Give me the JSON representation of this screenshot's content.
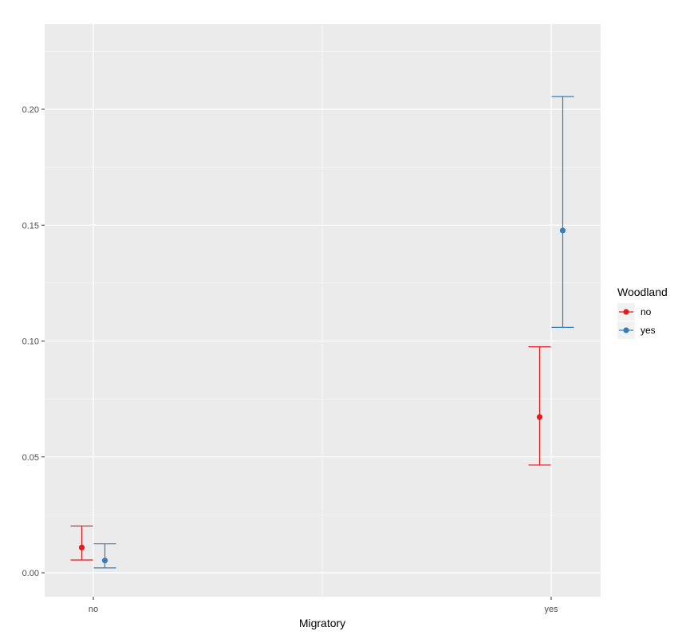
{
  "chart_data": {
    "type": "scatter",
    "subtype": "point-with-errorbars",
    "xlabel": "Migratory",
    "ylabel": "",
    "categories": [
      "no",
      "yes"
    ],
    "ylim": [
      -0.011,
      0.235
    ],
    "yticks": [
      0.0,
      0.05,
      0.1,
      0.15,
      0.2
    ],
    "ytick_labels": [
      "0.00",
      "0.05",
      "0.10",
      "0.15",
      "0.20"
    ],
    "grid": true,
    "background": "#ebebeb",
    "legend": {
      "title": "Woodland",
      "position": "right"
    },
    "series": [
      {
        "name": "no",
        "color": "#e41a1c",
        "points": [
          {
            "category": "no",
            "y": 0.0109,
            "ymin": 0.0055,
            "ymax": 0.0202
          },
          {
            "category": "yes",
            "y": 0.0672,
            "ymin": 0.0465,
            "ymax": 0.0975
          }
        ]
      },
      {
        "name": "yes",
        "color": "#377eb8",
        "points": [
          {
            "category": "no",
            "y": 0.0053,
            "ymin": 0.0021,
            "ymax": 0.0125
          },
          {
            "category": "yes",
            "y": 0.1477,
            "ymin": 0.1059,
            "ymax": 0.2055
          }
        ]
      }
    ]
  }
}
